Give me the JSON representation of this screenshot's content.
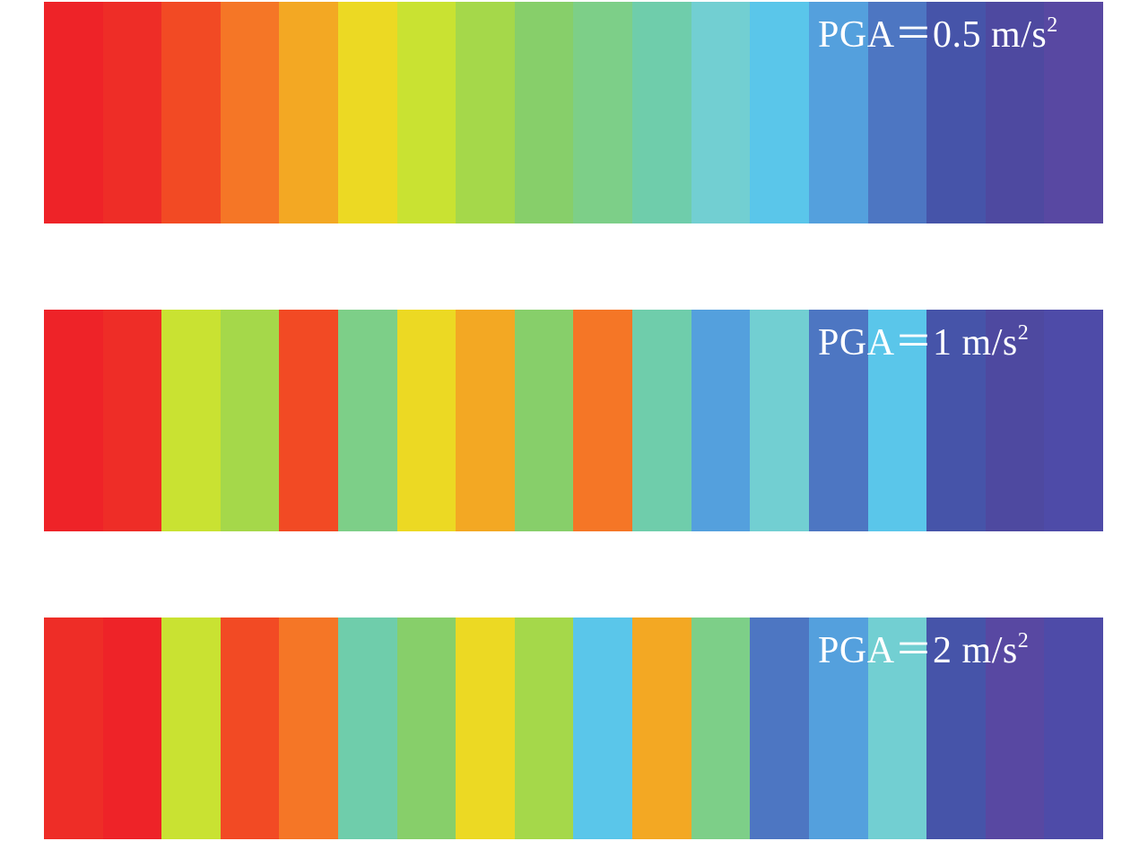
{
  "rows": [
    {
      "label_main": "PGA＝0.5 m/s",
      "label_sup": "2",
      "colors": [
        "#ee2328",
        "#ee2d27",
        "#f24a24",
        "#f57626",
        "#f3a823",
        "#ecd923",
        "#c9e232",
        "#a5d84a",
        "#87cf6a",
        "#7dcf88",
        "#6fcdab",
        "#72cfd2",
        "#5ac6ea",
        "#54a0dd",
        "#4d76c2",
        "#4654a9",
        "#4e49a0",
        "#5848a2"
      ]
    },
    {
      "label_main": "PGA＝1 m/s",
      "label_sup": "2",
      "colors": [
        "#ee2328",
        "#ee2d27",
        "#c9e232",
        "#a5d84a",
        "#f24a24",
        "#7dcf88",
        "#ecd923",
        "#f3a823",
        "#87cf6a",
        "#f57626",
        "#6fcdab",
        "#54a0dd",
        "#72cfd2",
        "#4d76c2",
        "#5ac6ea",
        "#4654a9",
        "#4e49a0",
        "#4e4ba8"
      ]
    },
    {
      "label_main": "PGA＝2 m/s",
      "label_sup": "2",
      "colors": [
        "#ee2d27",
        "#ee2328",
        "#c9e232",
        "#f24a24",
        "#f57626",
        "#6fcdab",
        "#87cf6a",
        "#ecd923",
        "#a5d84a",
        "#5ac6ea",
        "#f3a823",
        "#7dcf88",
        "#4d76c2",
        "#54a0dd",
        "#72cfd2",
        "#4654a9",
        "#5848a2",
        "#4e4ba8"
      ]
    }
  ]
}
